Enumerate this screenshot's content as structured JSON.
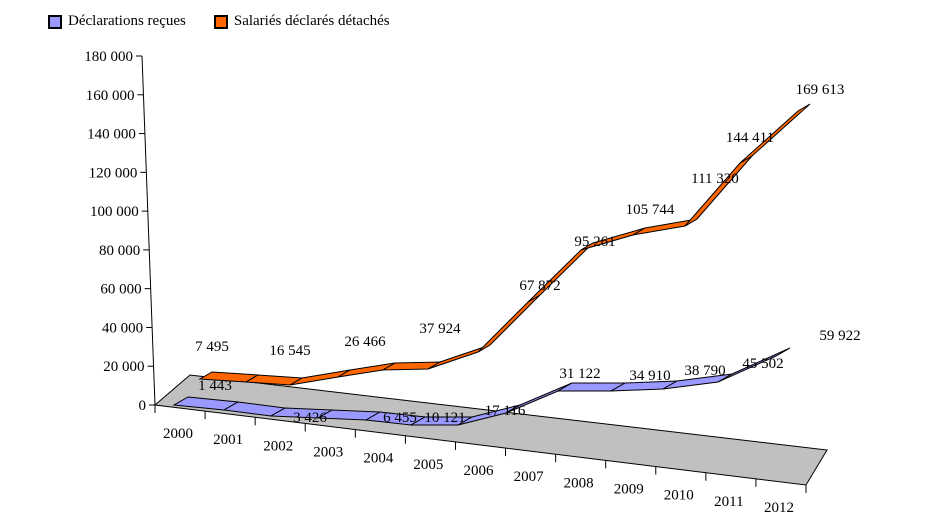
{
  "chart_data": {
    "type": "line",
    "style": "3d-line",
    "title": "",
    "xlabel": "",
    "ylabel": "",
    "ylim": [
      0,
      180000
    ],
    "yticks": [
      "0",
      "20 000",
      "40 000",
      "60 000",
      "80 000",
      "100 000",
      "120 000",
      "140 000",
      "160 000",
      "180 000"
    ],
    "categories": [
      "2000",
      "2001",
      "2002",
      "2003",
      "2004",
      "2005",
      "2006",
      "2007",
      "2008",
      "2009",
      "2010",
      "2011",
      "2012"
    ],
    "legend_position": "top-left",
    "series": [
      {
        "name": "Déclarations reçues",
        "color": "#9999ff",
        "data_labels": [
          "1 443",
          "3 426",
          "6 455",
          "10 121",
          "17 116",
          "31 122",
          "34 910",
          "38 790",
          "45 502",
          "59 922"
        ],
        "values": [
          1443,
          null,
          3426,
          null,
          6455,
          10121,
          17116,
          31122,
          34910,
          38790,
          null,
          45502,
          59922
        ]
      },
      {
        "name": "Salariés déclarés détachés",
        "color": "#ff6600",
        "data_labels": [
          "7 495",
          "16 545",
          "26 466",
          "37 924",
          "67 872",
          "95 261",
          "105 744",
          "111 320",
          "144 411",
          "169 613"
        ],
        "values": [
          7495,
          null,
          16545,
          null,
          26466,
          37924,
          67872,
          95261,
          105744,
          111320,
          null,
          144411,
          169613
        ]
      }
    ]
  },
  "legend": {
    "items": [
      {
        "label": "Déclarations reçues",
        "color": "#9999ff"
      },
      {
        "label": "Salariés déclarés détachés",
        "color": "#ff6600"
      }
    ]
  }
}
